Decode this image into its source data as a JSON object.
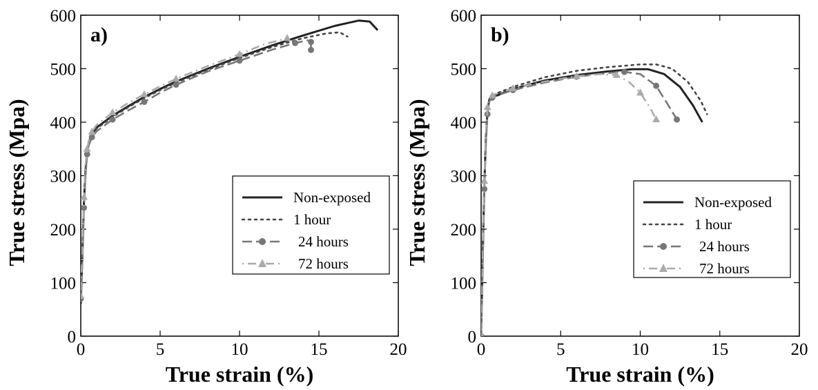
{
  "chart_data": [
    {
      "type": "line",
      "panel_label": "a)",
      "xlabel": "True strain (%)",
      "ylabel": "True stress (Mpa)",
      "xlim": [
        0,
        20
      ],
      "ylim": [
        0,
        600
      ],
      "xticks": [
        "0",
        "5",
        "10",
        "15",
        "20"
      ],
      "yticks": [
        "0",
        "100",
        "200",
        "300",
        "400",
        "500",
        "600"
      ],
      "grid": false,
      "legend_position": "lower-right",
      "series": [
        {
          "name": "Non-exposed",
          "style": "solid",
          "color": "#222222",
          "marker": "none",
          "x": [
            0.0,
            0.1,
            0.2,
            0.3,
            0.4,
            0.5,
            0.7,
            1.0,
            2.0,
            3.0,
            4.0,
            5.0,
            6.0,
            8.0,
            10.0,
            12.0,
            14.0,
            16.0,
            17.5,
            18.2,
            18.7
          ],
          "y": [
            60,
            150,
            250,
            310,
            345,
            360,
            378,
            390,
            412,
            430,
            447,
            462,
            476,
            500,
            522,
            543,
            562,
            580,
            590,
            588,
            572
          ]
        },
        {
          "name": "1 hour",
          "style": "dotted",
          "color": "#444444",
          "marker": "none",
          "x": [
            0.0,
            0.1,
            0.2,
            0.3,
            0.4,
            0.5,
            0.7,
            1.0,
            2.0,
            3.0,
            4.0,
            5.0,
            6.0,
            8.0,
            10.0,
            12.0,
            14.0,
            15.5,
            16.3,
            16.8
          ],
          "y": [
            65,
            155,
            255,
            315,
            348,
            362,
            378,
            388,
            410,
            428,
            445,
            460,
            474,
            498,
            520,
            540,
            557,
            566,
            568,
            560
          ]
        },
        {
          "name": "24 hours",
          "style": "dashed",
          "color": "#777777",
          "marker": "circle",
          "x": [
            0.0,
            0.1,
            0.2,
            0.3,
            0.4,
            0.5,
            0.7,
            1.0,
            2.0,
            3.0,
            4.0,
            5.0,
            6.0,
            8.0,
            10.0,
            12.0,
            13.5,
            14.3,
            14.5,
            14.5
          ],
          "y": [
            70,
            140,
            240,
            300,
            340,
            356,
            372,
            383,
            405,
            422,
            438,
            455,
            470,
            495,
            515,
            535,
            548,
            553,
            550,
            535
          ]
        },
        {
          "name": "72 hours",
          "style": "dashdot",
          "color": "#aaaaaa",
          "marker": "triangle",
          "x": [
            0.0,
            0.1,
            0.2,
            0.3,
            0.4,
            0.5,
            0.7,
            1.0,
            2.0,
            3.0,
            4.0,
            5.0,
            6.0,
            8.0,
            10.0,
            11.5,
            13.0
          ],
          "y": [
            75,
            160,
            260,
            320,
            350,
            365,
            382,
            395,
            418,
            436,
            452,
            467,
            481,
            505,
            527,
            545,
            557
          ]
        }
      ]
    },
    {
      "type": "line",
      "panel_label": "b)",
      "xlabel": "True strain (%)",
      "ylabel": "True stress (Mpa)",
      "xlim": [
        0,
        20
      ],
      "ylim": [
        0,
        600
      ],
      "xticks": [
        "0",
        "5",
        "10",
        "15",
        "20"
      ],
      "yticks": [
        "0",
        "100",
        "200",
        "300",
        "400",
        "500",
        "600"
      ],
      "grid": false,
      "legend_position": "lower-right",
      "series": [
        {
          "name": "Non-exposed",
          "style": "solid",
          "color": "#222222",
          "marker": "none",
          "x": [
            0.0,
            0.1,
            0.2,
            0.3,
            0.4,
            0.5,
            0.7,
            1.0,
            2.0,
            4.0,
            6.0,
            8.0,
            9.5,
            10.5,
            11.5,
            12.5,
            13.3,
            13.9
          ],
          "y": [
            0,
            150,
            280,
            370,
            420,
            440,
            447,
            450,
            462,
            478,
            488,
            495,
            499,
            499,
            490,
            466,
            432,
            400
          ]
        },
        {
          "name": "1 hour",
          "style": "dotted",
          "color": "#444444",
          "marker": "none",
          "x": [
            0.0,
            0.1,
            0.2,
            0.3,
            0.4,
            0.5,
            0.7,
            1.0,
            2.0,
            4.0,
            6.0,
            8.0,
            10.0,
            11.0,
            12.0,
            13.0,
            13.8,
            14.2
          ],
          "y": [
            0,
            155,
            285,
            375,
            425,
            442,
            450,
            454,
            466,
            484,
            496,
            503,
            508,
            508,
            500,
            475,
            440,
            415
          ]
        },
        {
          "name": "24 hours",
          "style": "dashed",
          "color": "#777777",
          "marker": "circle",
          "x": [
            0.0,
            0.1,
            0.2,
            0.3,
            0.4,
            0.5,
            0.7,
            1.0,
            2.0,
            4.0,
            6.0,
            8.0,
            9.0,
            10.0,
            11.0,
            11.8,
            12.3
          ],
          "y": [
            0,
            145,
            275,
            365,
            415,
            438,
            446,
            450,
            460,
            474,
            485,
            492,
            494,
            490,
            468,
            430,
            405
          ]
        },
        {
          "name": "72 hours",
          "style": "dashdot",
          "color": "#aaaaaa",
          "marker": "triangle",
          "x": [
            0.0,
            0.1,
            0.2,
            0.3,
            0.4,
            0.5,
            0.7,
            1.0,
            2.0,
            4.0,
            6.0,
            7.5,
            8.5,
            9.3,
            10.0,
            10.6,
            11.0
          ],
          "y": [
            0,
            160,
            290,
            380,
            428,
            443,
            450,
            454,
            463,
            476,
            486,
            490,
            488,
            475,
            455,
            428,
            405
          ]
        }
      ]
    }
  ]
}
